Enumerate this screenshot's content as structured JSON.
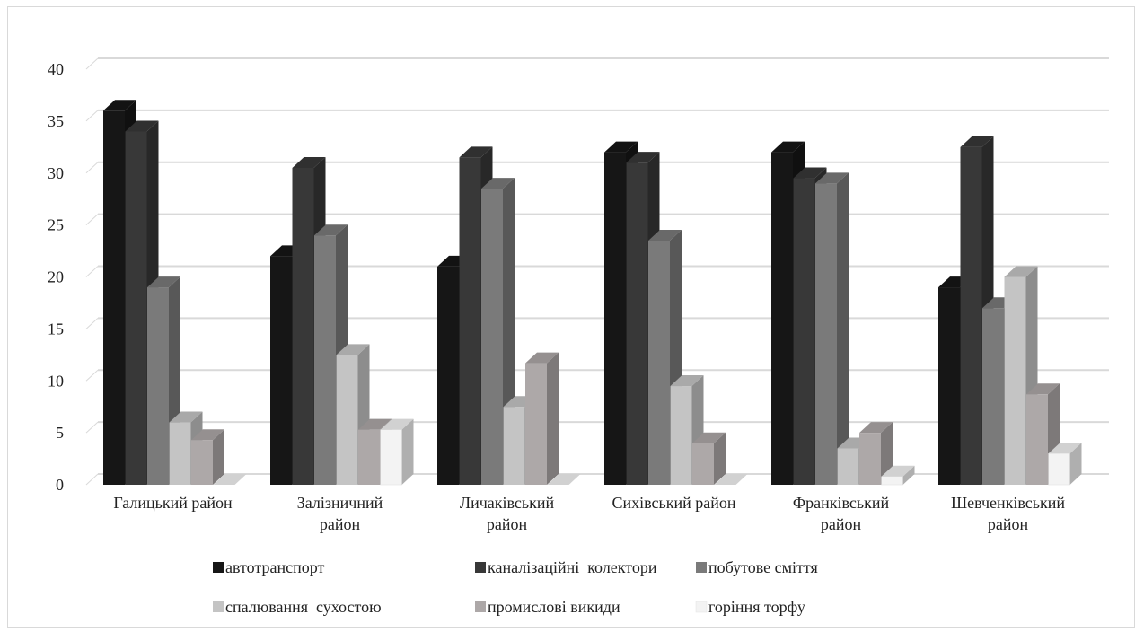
{
  "chart_data": {
    "type": "bar",
    "title": "",
    "xlabel": "",
    "ylabel": "",
    "ylim": [
      0,
      40
    ],
    "yticks": [
      "0",
      "5",
      "10",
      "15",
      "20",
      "25",
      "30",
      "35",
      "40"
    ],
    "grid": true,
    "legend_position": "bottom",
    "categories": [
      [
        "Галицький район"
      ],
      [
        "Залізничний",
        "район"
      ],
      [
        "Личаківський",
        "район"
      ],
      [
        "Сихівський район"
      ],
      [
        "Франківський",
        "район"
      ],
      [
        "Шевченківський",
        "район"
      ]
    ],
    "series": [
      {
        "name": "автотранспорт",
        "color": "#161616",
        "values": [
          36,
          22,
          21,
          32,
          32,
          19
        ]
      },
      {
        "name": "каналізаційні  колектори",
        "color": "#383838",
        "values": [
          34,
          30.5,
          31.5,
          31,
          29.5,
          32.5
        ]
      },
      {
        "name": "побутове сміття",
        "color": "#7a7a7a",
        "values": [
          19,
          24,
          28.5,
          23.5,
          29,
          17
        ]
      },
      {
        "name": "спалювання  сухостою",
        "color": "#c4c4c4",
        "values": [
          6,
          12.5,
          7.5,
          9.5,
          3.5,
          20
        ]
      },
      {
        "name": "промислові викиди",
        "color": "#ada8a8",
        "values": [
          4.3,
          5.3,
          11.7,
          4,
          5,
          8.7
        ]
      },
      {
        "name": "горіння торфу",
        "color": "#f3f3f3",
        "values": [
          0,
          5.3,
          0,
          0,
          0.8,
          3
        ]
      }
    ]
  }
}
